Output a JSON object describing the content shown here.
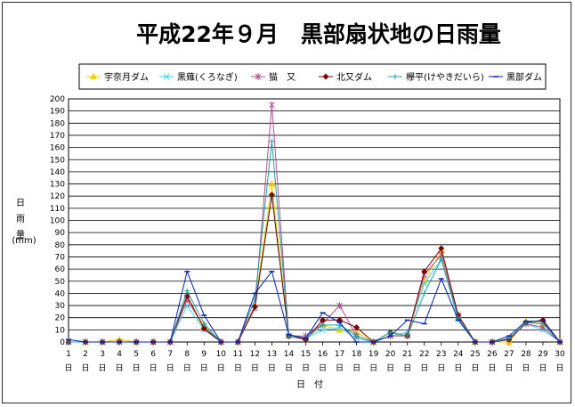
{
  "chart_data": {
    "type": "line",
    "title": "平成22年９月　黒部扇状地の日雨量",
    "ylabel_chars": [
      "日",
      "雨",
      "量"
    ],
    "yunit": "(mm)",
    "xlabel": "日　付",
    "x_suffix": "日",
    "ylim": [
      0,
      200
    ],
    "ytick_step": 10,
    "grid": true,
    "legend_position": "top",
    "x": [
      1,
      2,
      3,
      4,
      5,
      6,
      7,
      8,
      9,
      10,
      11,
      12,
      13,
      14,
      15,
      16,
      17,
      18,
      19,
      20,
      21,
      22,
      23,
      24,
      25,
      26,
      27,
      28,
      29,
      30
    ],
    "series": [
      {
        "name": "宇奈月ダム",
        "color": "#f0d000",
        "marker": "triangle",
        "values": [
          0,
          0,
          0,
          2,
          0,
          0,
          0,
          35,
          13,
          0,
          0,
          30,
          130,
          5,
          3,
          14,
          10,
          8,
          0,
          5,
          6,
          50,
          75,
          20,
          0,
          0,
          0,
          17,
          15,
          0
        ]
      },
      {
        "name": "黒薙(くろなぎ)",
        "color": "#40d0f0",
        "marker": "x",
        "values": [
          0,
          0,
          0,
          0,
          0,
          0,
          0,
          30,
          10,
          0,
          0,
          28,
          120,
          5,
          3,
          10,
          12,
          3,
          0,
          5,
          8,
          48,
          68,
          18,
          0,
          0,
          2,
          15,
          10,
          0
        ]
      },
      {
        "name": "猫　又",
        "color": "#b05090",
        "marker": "star",
        "values": [
          0,
          0,
          0,
          0,
          0,
          0,
          0,
          35,
          12,
          0,
          0,
          28,
          195,
          5,
          5,
          15,
          30,
          5,
          0,
          5,
          5,
          55,
          72,
          22,
          0,
          0,
          2,
          15,
          12,
          0
        ]
      },
      {
        "name": "北又ダム",
        "color": "#800000",
        "marker": "diamond",
        "values": [
          0,
          0,
          0,
          0,
          0,
          0,
          0,
          38,
          11,
          0,
          0,
          29,
          121,
          5,
          2,
          18,
          18,
          12,
          0,
          8,
          5,
          58,
          77,
          22,
          0,
          0,
          2,
          16,
          18,
          0
        ]
      },
      {
        "name": "欅平(けやきだいら)",
        "color": "#20a0a0",
        "marker": "plus",
        "values": [
          0,
          0,
          0,
          0,
          0,
          0,
          0,
          42,
          15,
          0,
          0,
          35,
          165,
          5,
          3,
          14,
          14,
          5,
          0,
          8,
          5,
          40,
          68,
          20,
          0,
          0,
          3,
          16,
          15,
          0
        ]
      },
      {
        "name": "黒部ダム",
        "color": "#0020b0",
        "marker": "dash",
        "values": [
          2,
          0,
          0,
          0,
          0,
          0,
          0,
          58,
          22,
          0,
          0,
          40,
          58,
          6,
          3,
          24,
          16,
          0,
          0,
          5,
          18,
          15,
          52,
          18,
          0,
          0,
          5,
          17,
          17,
          0
        ]
      }
    ]
  }
}
